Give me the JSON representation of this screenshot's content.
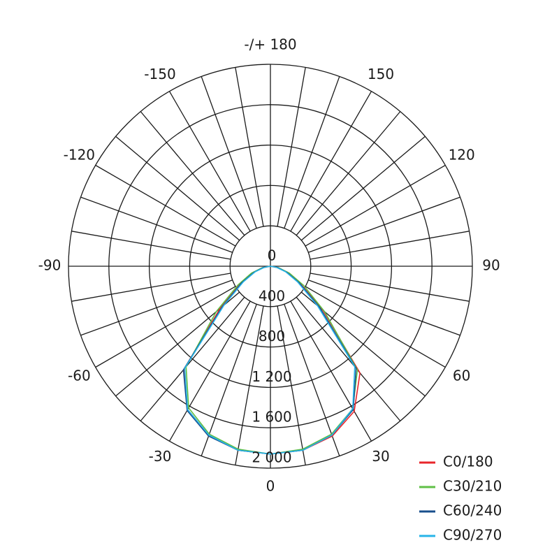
{
  "chart_data": {
    "type": "polar",
    "x": [
      -90,
      -80,
      -70,
      -60,
      -50,
      -40,
      -30,
      -20,
      -10,
      0,
      10,
      20,
      30,
      40,
      50,
      60,
      70,
      80,
      90
    ],
    "series": [
      {
        "name": "C0/180",
        "color": "#e8262b",
        "values": [
          0,
          70,
          180,
          340,
          650,
          1330,
          1640,
          1780,
          1850,
          1860,
          1850,
          1790,
          1660,
          1380,
          680,
          340,
          180,
          70,
          0
        ]
      },
      {
        "name": "C30/210",
        "color": "#5fbf46",
        "values": [
          0,
          80,
          200,
          370,
          700,
          1300,
          1620,
          1770,
          1840,
          1860,
          1840,
          1770,
          1630,
          1340,
          700,
          380,
          200,
          80,
          0
        ]
      },
      {
        "name": "C60/240",
        "color": "#184f8c",
        "values": [
          0,
          70,
          170,
          330,
          620,
          1340,
          1650,
          1790,
          1850,
          1860,
          1850,
          1780,
          1640,
          1320,
          640,
          330,
          170,
          70,
          0
        ]
      },
      {
        "name": "C90/270",
        "color": "#27b4e8",
        "values": [
          0,
          60,
          160,
          310,
          600,
          1320,
          1640,
          1780,
          1850,
          1860,
          1850,
          1780,
          1630,
          1300,
          610,
          310,
          160,
          60,
          0
        ]
      }
    ],
    "ylim": [
      0,
      2000
    ],
    "yticks": [
      0,
      400,
      800,
      {
        "value": 1200,
        "label": "1 200"
      },
      {
        "value": 1600,
        "label": "1 600"
      },
      {
        "value": 2000,
        "label": "2 000"
      }
    ],
    "xlim": [
      -180,
      180
    ],
    "xticks": [
      0,
      30,
      60,
      90,
      120,
      150,
      {
        "value": 180,
        "label": "-/+ 180"
      },
      -150,
      -120,
      -90,
      -60,
      -30
    ],
    "grid": true,
    "legend": "bottom-right"
  }
}
